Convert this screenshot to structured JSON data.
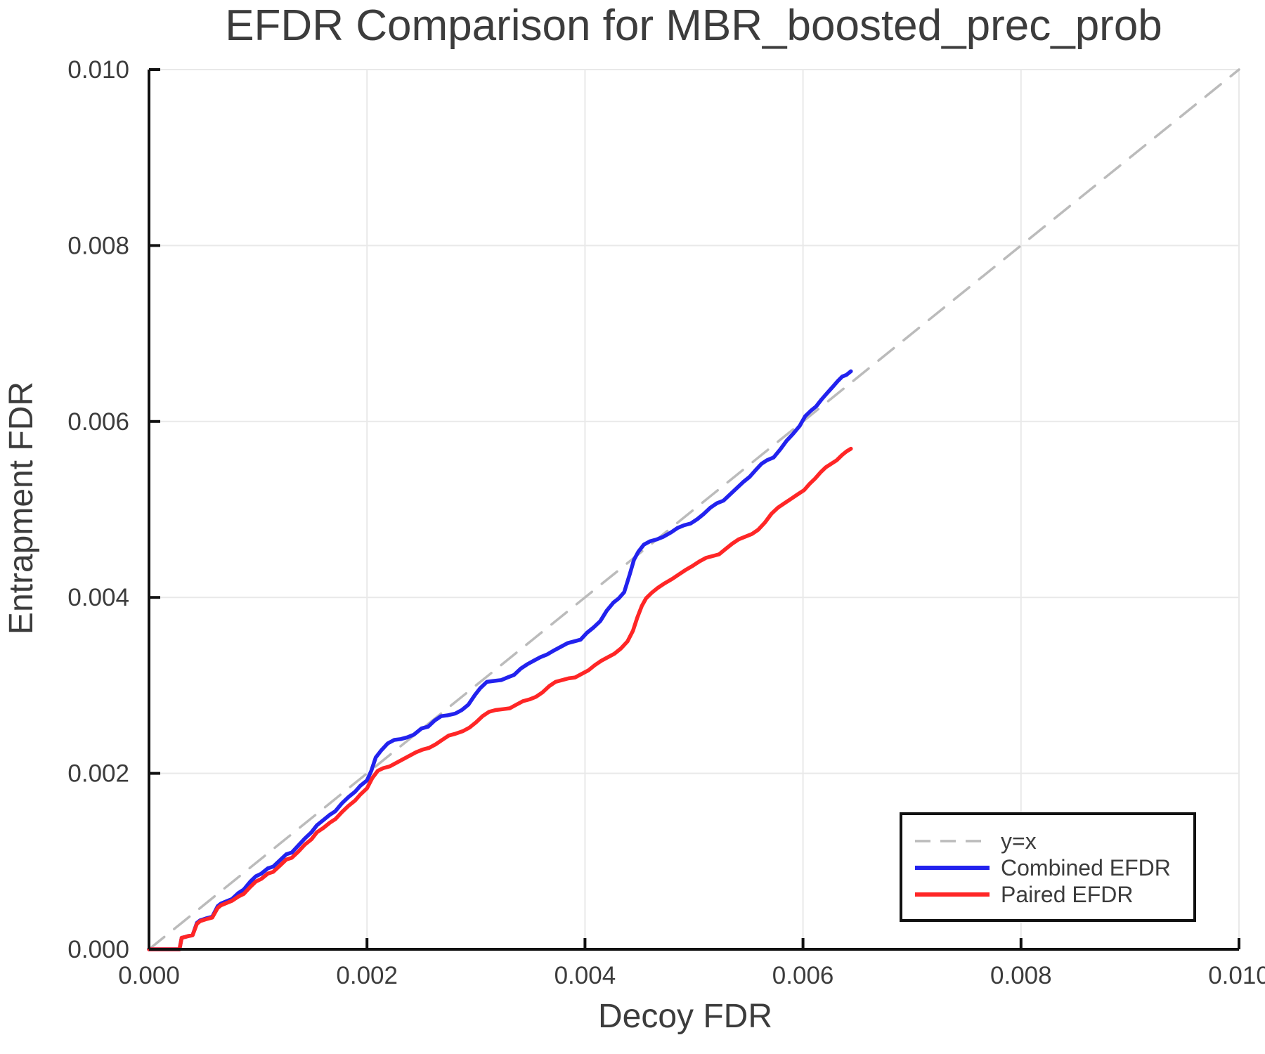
{
  "chart_data": {
    "type": "line",
    "title": "EFDR Comparison for MBR_boosted_prec_prob",
    "xlabel": "Decoy FDR",
    "ylabel": "Entrapment FDR",
    "xlim": [
      0.0,
      0.01
    ],
    "ylim": [
      0.0,
      0.01
    ],
    "grid": true,
    "legend_position": "lower right",
    "colors": {
      "diagonal": "#bbbbbb",
      "combined": "#2222ee",
      "paired": "#ff2626",
      "grid": "#e9e9e9",
      "spine": "#111111",
      "text": "#3c3c3c",
      "background": "#ffffff"
    },
    "xticks": {
      "values": [
        0.0,
        0.002,
        0.004,
        0.006,
        0.008,
        0.01
      ],
      "labels": [
        "0.000",
        "0.002",
        "0.004",
        "0.006",
        "0.008",
        "0.010"
      ]
    },
    "yticks": {
      "values": [
        0.0,
        0.002,
        0.004,
        0.006,
        0.008,
        0.01
      ],
      "labels": [
        "0.000",
        "0.002",
        "0.004",
        "0.006",
        "0.008",
        "0.010"
      ]
    },
    "series": [
      {
        "name": "y=x",
        "style": "dashed",
        "color_key": "diagonal",
        "x": [
          0.0,
          0.01
        ],
        "y": [
          0.0,
          0.01
        ]
      },
      {
        "name": "Combined EFDR",
        "style": "solid",
        "color_key": "combined",
        "x": [
          0,
          0.00028,
          0.0003,
          0.00033,
          0.00036,
          0.0004,
          0.00044,
          0.00047,
          0.00052,
          0.00058,
          0.00063,
          0.00066,
          0.00072,
          0.00076,
          0.00082,
          0.00087,
          0.00093,
          0.00098,
          0.00103,
          0.00109,
          0.00114,
          0.0012,
          0.00126,
          0.00131,
          0.00137,
          0.00143,
          0.00149,
          0.00154,
          0.0016,
          0.00166,
          0.00171,
          0.00177,
          0.00183,
          0.00189,
          0.00194,
          0.002,
          0.00204,
          0.00208,
          0.00213,
          0.00219,
          0.00225,
          0.00231,
          0.00237,
          0.00243,
          0.0025,
          0.00256,
          0.00262,
          0.00268,
          0.00274,
          0.00281,
          0.00287,
          0.00293,
          0.00299,
          0.00304,
          0.0031,
          0.00316,
          0.00323,
          0.00329,
          0.00335,
          0.00341,
          0.00347,
          0.00353,
          0.00359,
          0.00365,
          0.00372,
          0.00378,
          0.00384,
          0.0039,
          0.00396,
          0.00402,
          0.00408,
          0.00414,
          0.0042,
          0.00426,
          0.00431,
          0.00436,
          0.00441,
          0.00445,
          0.00449,
          0.00454,
          0.0046,
          0.00466,
          0.00472,
          0.00479,
          0.00485,
          0.00491,
          0.00497,
          0.00503,
          0.00509,
          0.00515,
          0.00521,
          0.00527,
          0.00533,
          0.00539,
          0.00545,
          0.00551,
          0.00556,
          0.00562,
          0.00567,
          0.00573,
          0.00579,
          0.00585,
          0.00591,
          0.00597,
          0.00602,
          0.00607,
          0.00612,
          0.00617,
          0.00622,
          0.00627,
          0.00632,
          0.00636,
          0.0064,
          0.00644
        ],
        "y": [
          0,
          0,
          0.00013,
          0.00014,
          0.00015,
          0.00016,
          0.0003,
          0.00033,
          0.00035,
          0.00037,
          0.00049,
          0.00052,
          0.00055,
          0.00057,
          0.00064,
          0.00068,
          0.00077,
          0.00083,
          0.00086,
          0.00092,
          0.00094,
          0.00101,
          0.00108,
          0.0011,
          0.00118,
          0.00126,
          0.00133,
          0.00141,
          0.00147,
          0.00153,
          0.00157,
          0.00166,
          0.00173,
          0.00179,
          0.00186,
          0.00192,
          0.00203,
          0.00218,
          0.00226,
          0.00234,
          0.00238,
          0.00239,
          0.00241,
          0.00244,
          0.00251,
          0.00253,
          0.0026,
          0.00265,
          0.00266,
          0.00268,
          0.00272,
          0.00278,
          0.00289,
          0.00297,
          0.00304,
          0.00305,
          0.00306,
          0.00309,
          0.00312,
          0.00319,
          0.00324,
          0.00328,
          0.00332,
          0.00335,
          0.0034,
          0.00344,
          0.00348,
          0.0035,
          0.00352,
          0.0036,
          0.00366,
          0.00373,
          0.00385,
          0.00394,
          0.00399,
          0.00406,
          0.00426,
          0.00443,
          0.00452,
          0.0046,
          0.00464,
          0.00466,
          0.00469,
          0.00474,
          0.00479,
          0.00482,
          0.00484,
          0.00489,
          0.00495,
          0.00502,
          0.00507,
          0.0051,
          0.00517,
          0.00524,
          0.00531,
          0.00537,
          0.00544,
          0.00552,
          0.00556,
          0.00559,
          0.00568,
          0.00578,
          0.00586,
          0.00595,
          0.00606,
          0.00612,
          0.00617,
          0.00625,
          0.00632,
          0.00639,
          0.00646,
          0.00651,
          0.00653,
          0.00657
        ]
      },
      {
        "name": "Paired EFDR",
        "style": "solid",
        "color_key": "paired",
        "x": [
          0,
          0.00028,
          0.0003,
          0.00033,
          0.00036,
          0.0004,
          0.00044,
          0.00047,
          0.00052,
          0.00058,
          0.00063,
          0.00066,
          0.00072,
          0.00076,
          0.00082,
          0.00087,
          0.00093,
          0.00098,
          0.00103,
          0.00109,
          0.00114,
          0.0012,
          0.00126,
          0.00131,
          0.00137,
          0.00143,
          0.00149,
          0.00154,
          0.0016,
          0.00166,
          0.00171,
          0.00177,
          0.00183,
          0.00189,
          0.00194,
          0.002,
          0.00205,
          0.0021,
          0.00215,
          0.00221,
          0.00227,
          0.00233,
          0.00239,
          0.00245,
          0.00251,
          0.00257,
          0.00263,
          0.00269,
          0.00275,
          0.00281,
          0.00288,
          0.00294,
          0.003,
          0.00306,
          0.00312,
          0.00318,
          0.00325,
          0.00331,
          0.00337,
          0.00343,
          0.00349,
          0.00355,
          0.00361,
          0.00367,
          0.00373,
          0.00379,
          0.00385,
          0.00391,
          0.00397,
          0.00403,
          0.00409,
          0.00415,
          0.00421,
          0.00427,
          0.00433,
          0.00439,
          0.00444,
          0.00448,
          0.00452,
          0.00456,
          0.00461,
          0.00467,
          0.00473,
          0.0048,
          0.00486,
          0.00492,
          0.00499,
          0.00505,
          0.00511,
          0.00517,
          0.00523,
          0.00529,
          0.00535,
          0.00541,
          0.00547,
          0.00553,
          0.00559,
          0.00565,
          0.00571,
          0.00577,
          0.00583,
          0.00589,
          0.00595,
          0.00601,
          0.00606,
          0.00611,
          0.00616,
          0.00621,
          0.00626,
          0.00631,
          0.00636,
          0.0064,
          0.00644
        ],
        "y": [
          0,
          0,
          0.00013,
          0.00014,
          0.00015,
          0.00016,
          0.00029,
          0.00032,
          0.00034,
          0.00036,
          0.00047,
          0.0005,
          0.00053,
          0.00055,
          0.0006,
          0.00063,
          0.00071,
          0.00077,
          0.0008,
          0.00086,
          0.00088,
          0.00095,
          0.00102,
          0.00104,
          0.00111,
          0.00119,
          0.00125,
          0.00133,
          0.00138,
          0.00144,
          0.00148,
          0.00156,
          0.00163,
          0.00169,
          0.00176,
          0.00183,
          0.00195,
          0.00203,
          0.00206,
          0.00208,
          0.00212,
          0.00216,
          0.0022,
          0.00224,
          0.00227,
          0.00229,
          0.00233,
          0.00238,
          0.00243,
          0.00245,
          0.00248,
          0.00252,
          0.00258,
          0.00265,
          0.0027,
          0.00272,
          0.00273,
          0.00274,
          0.00278,
          0.00282,
          0.00284,
          0.00287,
          0.00292,
          0.00299,
          0.00304,
          0.00306,
          0.00308,
          0.00309,
          0.00313,
          0.00317,
          0.00323,
          0.00328,
          0.00332,
          0.00336,
          0.00342,
          0.0035,
          0.00362,
          0.00377,
          0.0039,
          0.00399,
          0.00405,
          0.00411,
          0.00416,
          0.00421,
          0.00426,
          0.00431,
          0.00436,
          0.00441,
          0.00445,
          0.00447,
          0.00449,
          0.00455,
          0.00461,
          0.00466,
          0.00469,
          0.00472,
          0.00477,
          0.00485,
          0.00495,
          0.00502,
          0.00507,
          0.00512,
          0.00517,
          0.00522,
          0.00529,
          0.00535,
          0.00542,
          0.00548,
          0.00552,
          0.00556,
          0.00562,
          0.00566,
          0.00569
        ]
      }
    ]
  }
}
